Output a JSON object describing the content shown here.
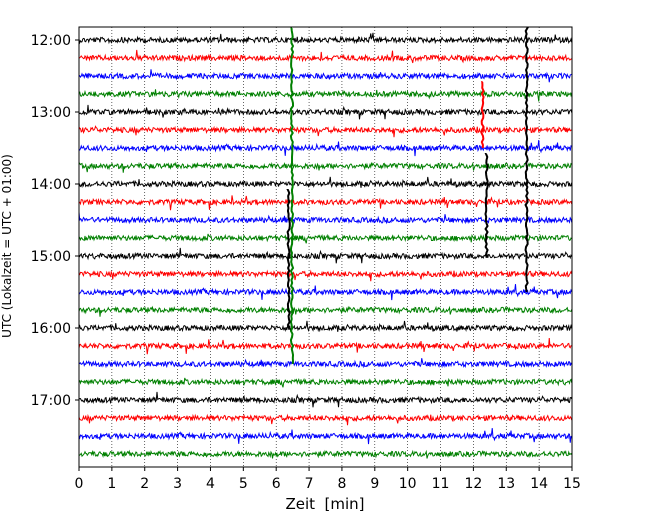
{
  "chart_data": {
    "type": "line",
    "subtype": "dayplot seismogram (helicorder)",
    "xlabel": "Zeit  [min]",
    "ylabel": "UTC (Lokalzeit = UTC + 01:00)",
    "xlim": [
      0,
      15
    ],
    "x_ticks": [
      0,
      1,
      2,
      3,
      4,
      5,
      6,
      7,
      8,
      9,
      10,
      11,
      12,
      13,
      14,
      15
    ],
    "x_tick_labels": [
      "0",
      "1",
      "2",
      "3",
      "4",
      "5",
      "6",
      "7",
      "8",
      "9",
      "10",
      "11",
      "12",
      "13",
      "14",
      "15"
    ],
    "y_tick_labels": [
      "12:00",
      "13:00",
      "14:00",
      "15:00",
      "16:00",
      "17:00"
    ],
    "grid": "vertical dotted lines at each minute",
    "line_colors": [
      "#000000",
      "#ff0000",
      "#0000ff",
      "#008000"
    ],
    "rows": [
      {
        "start": "12:00",
        "color": "#000000"
      },
      {
        "start": "12:15",
        "color": "#ff0000"
      },
      {
        "start": "12:30",
        "color": "#0000ff"
      },
      {
        "start": "12:45",
        "color": "#008000"
      },
      {
        "start": "13:00",
        "color": "#000000"
      },
      {
        "start": "13:15",
        "color": "#ff0000"
      },
      {
        "start": "13:30",
        "color": "#0000ff"
      },
      {
        "start": "13:45",
        "color": "#008000"
      },
      {
        "start": "14:00",
        "color": "#000000"
      },
      {
        "start": "14:15",
        "color": "#ff0000"
      },
      {
        "start": "14:30",
        "color": "#0000ff"
      },
      {
        "start": "14:45",
        "color": "#008000"
      },
      {
        "start": "15:00",
        "color": "#000000"
      },
      {
        "start": "15:15",
        "color": "#ff0000"
      },
      {
        "start": "15:30",
        "color": "#0000ff"
      },
      {
        "start": "15:45",
        "color": "#008000"
      },
      {
        "start": "16:00",
        "color": "#000000"
      },
      {
        "start": "16:15",
        "color": "#ff0000"
      },
      {
        "start": "16:30",
        "color": "#0000ff"
      },
      {
        "start": "16:45",
        "color": "#008000"
      },
      {
        "start": "17:00",
        "color": "#000000"
      },
      {
        "start": "17:15",
        "color": "#ff0000"
      },
      {
        "start": "17:30",
        "color": "#0000ff"
      },
      {
        "start": "17:45",
        "color": "#008000"
      }
    ],
    "events": [
      {
        "minute": 6.48,
        "color": "#008000",
        "from_row": "12:00",
        "to_row": "16:30"
      },
      {
        "minute": 6.38,
        "color": "#000000",
        "from_row": "14:15",
        "to_row": "16:00"
      },
      {
        "minute": 12.28,
        "color": "#ff0000",
        "from_row": "12:45",
        "to_row": "13:30"
      },
      {
        "minute": 12.4,
        "color": "#000000",
        "from_row": "13:45",
        "to_row": "15:00"
      },
      {
        "minute": 13.62,
        "color": "#000000",
        "from_row": "12:00",
        "to_row": "15:30"
      }
    ]
  }
}
